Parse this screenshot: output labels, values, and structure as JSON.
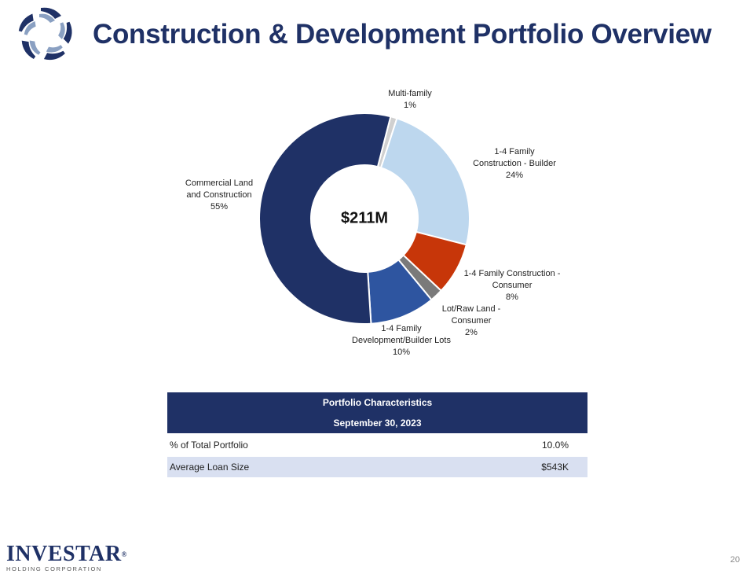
{
  "header": {
    "title": "Construction & Development Portfolio Overview"
  },
  "chart_data": {
    "type": "pie",
    "variant": "donut",
    "center_label": "$211M",
    "slices": [
      {
        "name": "Multi-family",
        "value": 1,
        "label": "1%",
        "color": "#d0d0d0"
      },
      {
        "name": "1-4 Family Construction - Builder",
        "value": 24,
        "label": "24%",
        "color": "#bdd7ee"
      },
      {
        "name": "1-4 Family Construction - Consumer",
        "value": 8,
        "label": "8%",
        "color": "#c73609"
      },
      {
        "name": "Lot/Raw Land - Consumer",
        "value": 2,
        "label": "2%",
        "color": "#7a7a7a"
      },
      {
        "name": "1-4 Family Development/Builder Lots",
        "value": 10,
        "label": "10%",
        "color": "#2e55a0"
      },
      {
        "name": "Commercial Land and Construction",
        "value": 55,
        "label": "55%",
        "color": "#1f3166"
      }
    ],
    "slice_label_lines": [
      [
        "Multi-family"
      ],
      [
        "1-4 Family",
        "Construction - Builder"
      ],
      [
        "1-4 Family Construction -",
        "Consumer"
      ],
      [
        "Lot/Raw Land -",
        "Consumer"
      ],
      [
        "1-4 Family",
        "Development/Builder Lots"
      ],
      [
        "Commercial Land",
        "and Construction"
      ]
    ]
  },
  "table": {
    "header_line1": "Portfolio Characteristics",
    "header_line2": "September 30, 2023",
    "rows": [
      {
        "label": "% of Total Portfolio",
        "value": "10.0%"
      },
      {
        "label": "Average Loan Size",
        "value": "$543K"
      }
    ]
  },
  "footer": {
    "brand_name": "INVESTAR",
    "brand_mark": "®",
    "brand_sub": "HOLDING CORPORATION",
    "page_number": "20"
  },
  "colors": {
    "navy": "#1f3166",
    "row_alt": "#d9e0f1"
  }
}
